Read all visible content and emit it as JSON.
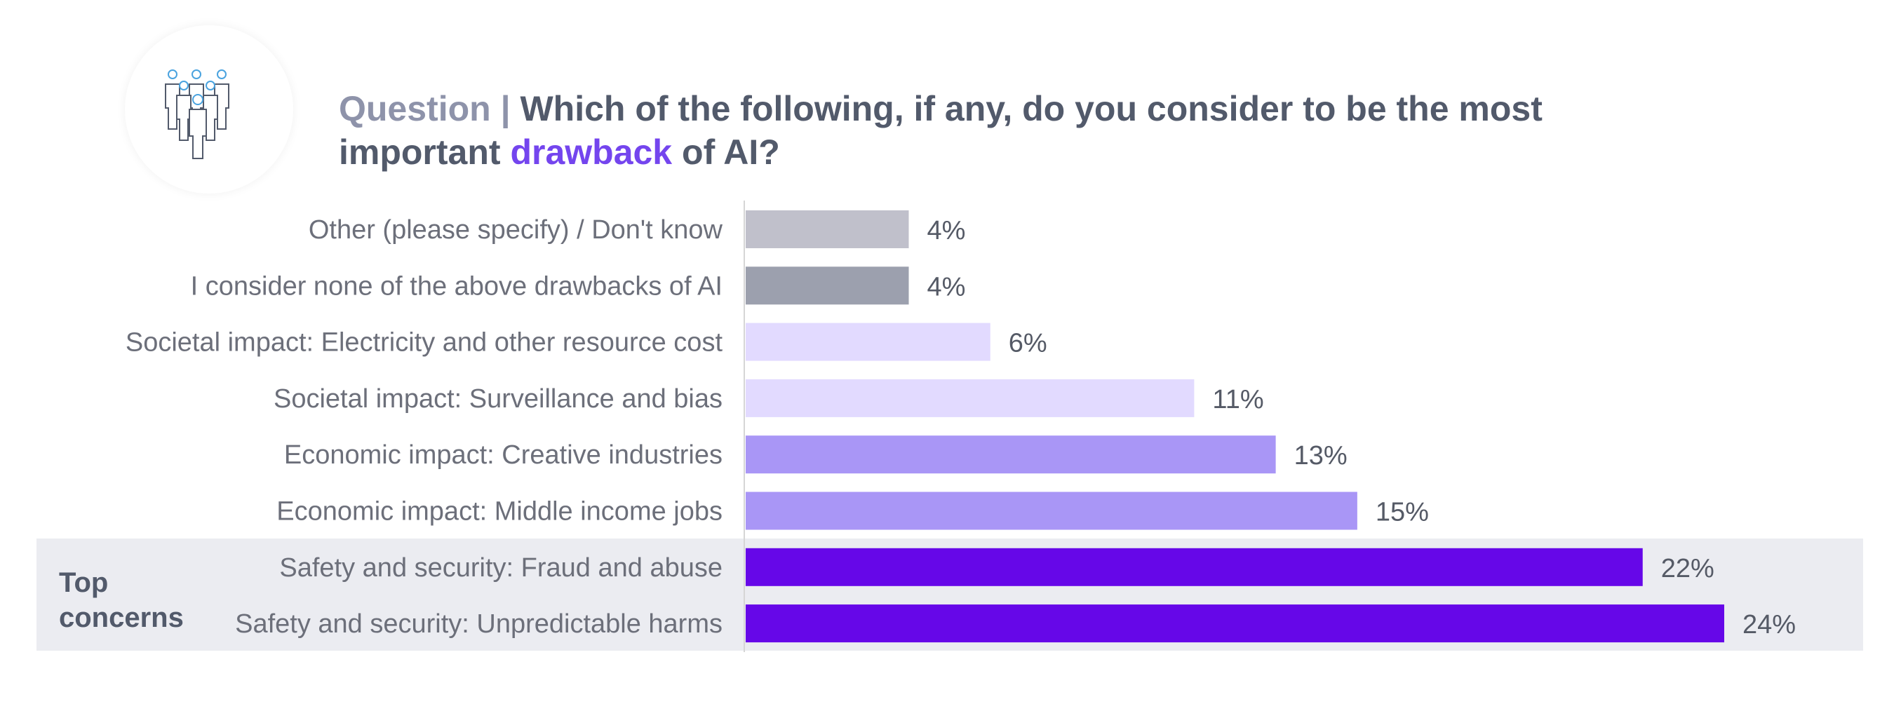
{
  "header": {
    "title_prefix": "Question |",
    "title_part1": "Which of the following, if any, do you consider to be the most important",
    "title_highlight": "drawback",
    "title_part2": "of AI?",
    "icon": "people-group-icon"
  },
  "group": {
    "label_line1": "Top",
    "label_line2": "concerns",
    "band_color": "#ebecf1"
  },
  "chart_data": {
    "type": "bar",
    "orientation": "horizontal",
    "categories": [
      "Other (please specify) / Don't know",
      "I consider none of the above drawbacks of AI",
      "Societal impact: Electricity and other resource cost",
      "Societal impact: Surveillance and bias",
      "Economic impact: Creative industries",
      "Economic impact: Middle income jobs",
      "Safety and security: Fraud and abuse",
      "Safety and security: Unpredictable harms"
    ],
    "values": [
      4,
      4,
      6,
      11,
      13,
      15,
      22,
      24
    ],
    "value_labels": [
      "4%",
      "4%",
      "6%",
      "11%",
      "13%",
      "15%",
      "22%",
      "24%"
    ],
    "colors": [
      "#c0c0cb",
      "#9ca0ae",
      "#e2daff",
      "#e2daff",
      "#a996f6",
      "#a996f6",
      "#6607e8",
      "#6607e8"
    ],
    "unit": "%",
    "xlim": [
      0,
      24
    ],
    "highlighted_categories": [
      6,
      7
    ],
    "grid": false,
    "legend": "none"
  }
}
